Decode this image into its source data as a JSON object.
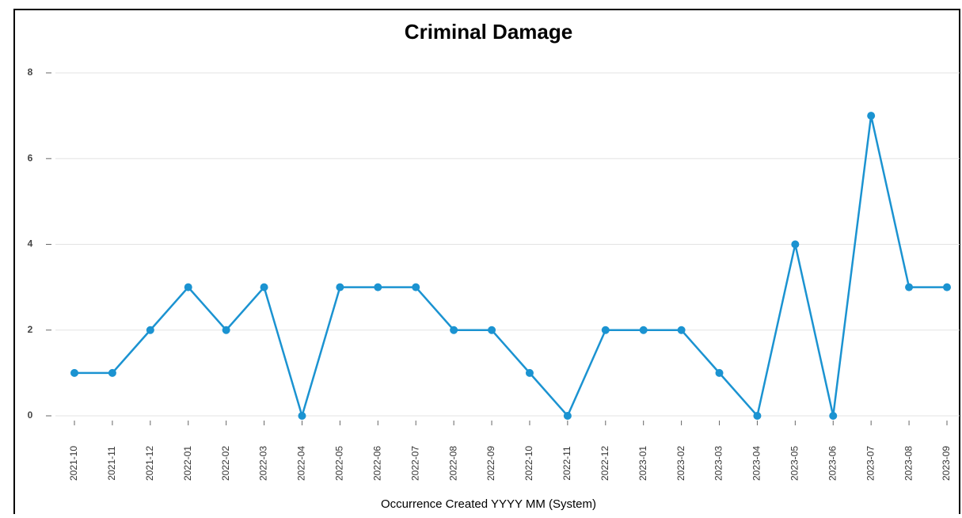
{
  "chart_data": {
    "type": "line",
    "title": "Criminal Damage",
    "x_label": "Occurrence Created YYYY MM (System)",
    "categories": [
      "2021-10",
      "2021-11",
      "2021-12",
      "2022-01",
      "2022-02",
      "2022-03",
      "2022-04",
      "2022-05",
      "2022-06",
      "2022-07",
      "2022-08",
      "2022-09",
      "2022-10",
      "2022-11",
      "2022-12",
      "2023-01",
      "2023-02",
      "2023-03",
      "2023-04",
      "2023-05",
      "2023-06",
      "2023-07",
      "2023-08",
      "2023-09"
    ],
    "series": [
      {
        "name": "Criminal Damage",
        "color": "#1b93d1",
        "values": [
          1,
          1,
          2,
          3,
          2,
          3,
          0,
          3,
          3,
          3,
          2,
          2,
          1,
          0,
          2,
          2,
          2,
          1,
          0,
          4,
          0,
          7,
          3,
          3
        ]
      }
    ],
    "ylim": [
      0,
      8
    ],
    "yticks": [
      0,
      2,
      4,
      6,
      8
    ],
    "grid": true
  }
}
